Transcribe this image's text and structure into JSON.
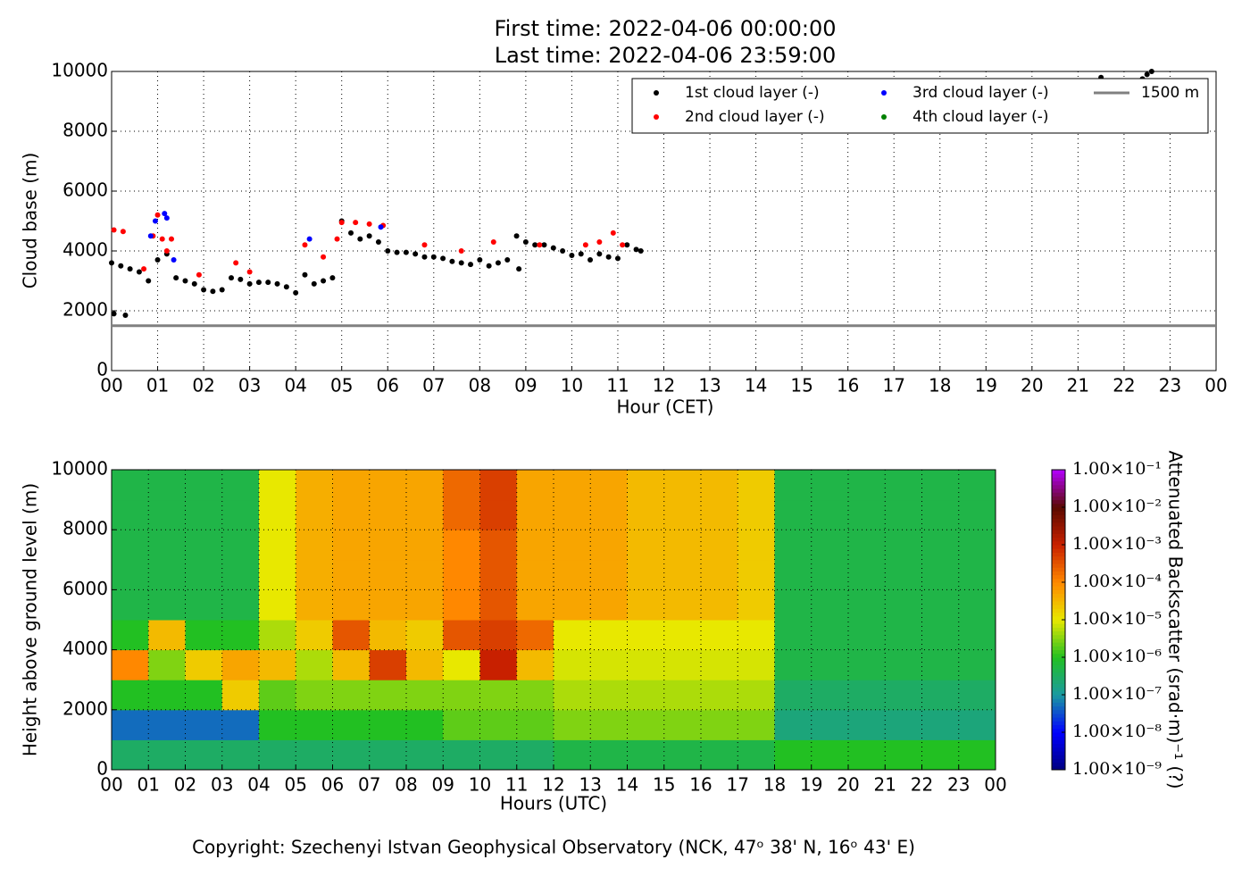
{
  "chart_data": [
    {
      "type": "scatter",
      "title": "First time: 2022-04-06 00:00:00",
      "subtitle": "Last time: 2022-04-06 23:59:00",
      "xlabel": "Hour (CET)",
      "ylabel": "Cloud base (m)",
      "xlim": [
        0,
        24
      ],
      "ylim": [
        0,
        10000
      ],
      "xticks": [
        {
          "value": 0,
          "label": "00"
        },
        {
          "value": 1,
          "label": "01"
        },
        {
          "value": 2,
          "label": "02"
        },
        {
          "value": 3,
          "label": "03"
        },
        {
          "value": 4,
          "label": "04"
        },
        {
          "value": 5,
          "label": "05"
        },
        {
          "value": 6,
          "label": "06"
        },
        {
          "value": 7,
          "label": "07"
        },
        {
          "value": 8,
          "label": "08"
        },
        {
          "value": 9,
          "label": "09"
        },
        {
          "value": 10,
          "label": "10"
        },
        {
          "value": 11,
          "label": "11"
        },
        {
          "value": 12,
          "label": "12"
        },
        {
          "value": 13,
          "label": "13"
        },
        {
          "value": 14,
          "label": "14"
        },
        {
          "value": 15,
          "label": "15"
        },
        {
          "value": 16,
          "label": "16"
        },
        {
          "value": 17,
          "label": "17"
        },
        {
          "value": 18,
          "label": "18"
        },
        {
          "value": 19,
          "label": "19"
        },
        {
          "value": 20,
          "label": "20"
        },
        {
          "value": 21,
          "label": "21"
        },
        {
          "value": 22,
          "label": "22"
        },
        {
          "value": 23,
          "label": "23"
        },
        {
          "value": 24,
          "label": "00"
        }
      ],
      "yticks": [
        0,
        2000,
        4000,
        6000,
        8000,
        10000
      ],
      "grid": true,
      "series": [
        {
          "name": "1st cloud layer (-)",
          "color": "#000000",
          "x": [
            0.0,
            0.05,
            0.2,
            0.3,
            0.4,
            0.6,
            0.8,
            1.0,
            1.2,
            1.4,
            1.6,
            1.8,
            2.0,
            2.2,
            2.4,
            2.6,
            2.8,
            3.0,
            3.2,
            3.4,
            3.6,
            3.8,
            4.0,
            4.2,
            4.4,
            4.6,
            4.8,
            5.0,
            5.2,
            5.4,
            5.6,
            5.8,
            6.0,
            6.2,
            6.4,
            6.6,
            6.8,
            7.0,
            7.2,
            7.4,
            7.6,
            7.8,
            8.0,
            8.2,
            8.4,
            8.6,
            8.8,
            8.85,
            9.0,
            9.2,
            9.4,
            9.6,
            9.8,
            10.0,
            10.2,
            10.4,
            10.6,
            10.8,
            11.0,
            11.2,
            11.4,
            11.5,
            21.5,
            22.4,
            22.5,
            22.6
          ],
          "values": [
            3600,
            1900,
            3500,
            1850,
            3400,
            3300,
            3000,
            3700,
            3900,
            3100,
            3000,
            2900,
            2700,
            2650,
            2700,
            3100,
            3050,
            2900,
            2950,
            2950,
            2900,
            2800,
            2600,
            3200,
            2900,
            3000,
            3100,
            5000,
            4600,
            4400,
            4500,
            4300,
            4000,
            3950,
            3950,
            3900,
            3800,
            3800,
            3750,
            3650,
            3600,
            3550,
            3700,
            3500,
            3600,
            3700,
            4500,
            3400,
            4300,
            4200,
            4200,
            4100,
            4000,
            3850,
            3900,
            3700,
            3900,
            3800,
            3750,
            4200,
            4050,
            4000,
            9800,
            9750,
            9900,
            10000
          ]
        },
        {
          "name": "2nd cloud layer (-)",
          "color": "#ff0000",
          "x": [
            0.05,
            0.25,
            0.7,
            0.9,
            1.0,
            1.1,
            1.2,
            1.3,
            1.9,
            2.7,
            3.0,
            4.2,
            4.6,
            4.9,
            5.0,
            5.3,
            5.6,
            5.9,
            6.8,
            7.6,
            8.3,
            9.3,
            10.3,
            10.6,
            10.9,
            11.1
          ],
          "values": [
            4700,
            4650,
            3400,
            4500,
            5200,
            4400,
            4000,
            4400,
            3200,
            3600,
            3300,
            4200,
            3800,
            4400,
            4950,
            4950,
            4900,
            4850,
            4200,
            4000,
            4300,
            4200,
            4200,
            4300,
            4600,
            4200
          ]
        },
        {
          "name": "3rd cloud layer (-)",
          "color": "#0000ff",
          "x": [
            0.85,
            0.95,
            1.15,
            1.2,
            1.35,
            4.3,
            5.85
          ],
          "values": [
            4500,
            5000,
            5250,
            5100,
            3700,
            4400,
            4800
          ]
        },
        {
          "name": "4th cloud layer (-)",
          "color": "#008000",
          "x": [],
          "values": []
        }
      ],
      "reference_line": {
        "name": "1500 m",
        "value": 1500,
        "color": "#808080"
      }
    },
    {
      "type": "heatmap",
      "xlabel": "Hours (UTC)",
      "ylabel": "Height above ground level (m)",
      "xlim": [
        0,
        24
      ],
      "ylim": [
        0,
        10000
      ],
      "xticks": [
        {
          "value": 0,
          "label": "00"
        },
        {
          "value": 1,
          "label": "01"
        },
        {
          "value": 2,
          "label": "02"
        },
        {
          "value": 3,
          "label": "03"
        },
        {
          "value": 4,
          "label": "04"
        },
        {
          "value": 5,
          "label": "05"
        },
        {
          "value": 6,
          "label": "06"
        },
        {
          "value": 7,
          "label": "07"
        },
        {
          "value": 8,
          "label": "08"
        },
        {
          "value": 9,
          "label": "09"
        },
        {
          "value": 10,
          "label": "10"
        },
        {
          "value": 11,
          "label": "11"
        },
        {
          "value": 12,
          "label": "12"
        },
        {
          "value": 13,
          "label": "13"
        },
        {
          "value": 14,
          "label": "14"
        },
        {
          "value": 15,
          "label": "15"
        },
        {
          "value": 16,
          "label": "16"
        },
        {
          "value": 17,
          "label": "17"
        },
        {
          "value": 18,
          "label": "18"
        },
        {
          "value": 19,
          "label": "19"
        },
        {
          "value": 20,
          "label": "20"
        },
        {
          "value": 21,
          "label": "21"
        },
        {
          "value": 22,
          "label": "22"
        },
        {
          "value": 23,
          "label": "23"
        },
        {
          "value": 24,
          "label": "00"
        }
      ],
      "yticks": [
        0,
        2000,
        4000,
        6000,
        8000,
        10000
      ],
      "grid": true,
      "x": [
        0,
        1,
        2,
        3,
        4,
        5,
        6,
        7,
        8,
        9,
        10,
        11,
        12,
        13,
        14,
        15,
        16,
        17,
        18,
        19,
        20,
        21,
        22,
        23,
        24
      ],
      "y": [
        0,
        1000,
        2000,
        3000,
        4000,
        5000,
        6000,
        7000,
        8000,
        9000,
        10000
      ],
      "z": [
        [
          3e-07,
          3e-07,
          3e-07,
          3e-07,
          3e-07,
          3e-07,
          3e-07,
          3e-07,
          3e-07,
          3e-07,
          3e-07,
          3e-07,
          5e-07,
          5e-07,
          5e-07,
          5e-07,
          5e-07,
          5e-07,
          1e-06,
          1e-06,
          1e-06,
          1e-06,
          1e-06,
          1e-06
        ],
        [
          5e-08,
          5e-08,
          5e-08,
          5e-08,
          1e-06,
          1e-06,
          1e-06,
          1e-06,
          1e-06,
          2e-06,
          2e-06,
          2e-06,
          3e-06,
          3e-06,
          3e-06,
          3e-06,
          3e-06,
          3e-06,
          2e-07,
          2e-07,
          2e-07,
          2e-07,
          2e-07,
          2e-07
        ],
        [
          1e-06,
          1e-06,
          1e-06,
          2e-05,
          2e-06,
          3e-06,
          3e-06,
          3e-06,
          3e-06,
          3e-06,
          3e-06,
          3e-06,
          5e-06,
          5e-06,
          5e-06,
          5e-06,
          5e-06,
          5e-06,
          3e-07,
          3e-07,
          3e-07,
          3e-07,
          3e-07,
          3e-07
        ],
        [
          0.0001,
          3e-06,
          2e-05,
          5e-05,
          3e-05,
          5e-06,
          3e-05,
          0.0005,
          3e-05,
          1e-05,
          0.001,
          3e-05,
          8e-06,
          8e-06,
          8e-06,
          8e-06,
          8e-06,
          8e-06,
          5e-07,
          5e-07,
          5e-07,
          5e-07,
          5e-07,
          5e-07
        ],
        [
          1e-06,
          3e-05,
          1e-06,
          1e-06,
          5e-06,
          2e-05,
          0.0003,
          3e-05,
          2e-05,
          0.0003,
          0.0005,
          0.0002,
          1e-05,
          1e-05,
          1e-05,
          1e-05,
          1e-05,
          1e-05,
          5e-07,
          5e-07,
          5e-07,
          5e-07,
          5e-07,
          5e-07
        ],
        [
          5e-07,
          5e-07,
          5e-07,
          5e-07,
          1e-05,
          4e-05,
          5e-05,
          5e-05,
          5e-05,
          0.0001,
          0.0003,
          5e-05,
          5e-05,
          5e-05,
          3e-05,
          3e-05,
          3e-05,
          2e-05,
          5e-07,
          5e-07,
          5e-07,
          5e-07,
          5e-07,
          5e-07
        ],
        [
          5e-07,
          5e-07,
          5e-07,
          5e-07,
          1e-05,
          4e-05,
          5e-05,
          5e-05,
          5e-05,
          0.0001,
          0.0003,
          5e-05,
          5e-05,
          5e-05,
          3e-05,
          3e-05,
          3e-05,
          2e-05,
          5e-07,
          5e-07,
          5e-07,
          5e-07,
          5e-07,
          5e-07
        ],
        [
          5e-07,
          5e-07,
          5e-07,
          5e-07,
          1e-05,
          4e-05,
          5e-05,
          5e-05,
          5e-05,
          0.0001,
          0.0003,
          5e-05,
          5e-05,
          5e-05,
          3e-05,
          3e-05,
          3e-05,
          2e-05,
          5e-07,
          5e-07,
          5e-07,
          5e-07,
          5e-07,
          5e-07
        ],
        [
          5e-07,
          5e-07,
          5e-07,
          5e-07,
          1e-05,
          4e-05,
          5e-05,
          5e-05,
          5e-05,
          0.0002,
          0.0005,
          5e-05,
          5e-05,
          5e-05,
          3e-05,
          3e-05,
          3e-05,
          2e-05,
          5e-07,
          5e-07,
          5e-07,
          5e-07,
          5e-07,
          5e-07
        ],
        [
          5e-07,
          5e-07,
          5e-07,
          5e-07,
          1e-05,
          4e-05,
          5e-05,
          5e-05,
          5e-05,
          0.0002,
          0.0005,
          5e-05,
          5e-05,
          5e-05,
          3e-05,
          3e-05,
          3e-05,
          2e-05,
          5e-07,
          5e-07,
          5e-07,
          5e-07,
          5e-07,
          5e-07
        ]
      ],
      "colorbar": {
        "label": "Attenuated Backscatter (srad·m)⁻¹ (?)",
        "log": true,
        "lim": [
          1e-09,
          0.1
        ],
        "ticks": [
          {
            "value": 1e-09,
            "label": "1.00×10⁻⁹"
          },
          {
            "value": 1e-08,
            "label": "1.00×10⁻⁸"
          },
          {
            "value": 1e-07,
            "label": "1.00×10⁻⁷"
          },
          {
            "value": 1e-06,
            "label": "1.00×10⁻⁶"
          },
          {
            "value": 1e-05,
            "label": "1.00×10⁻⁵"
          },
          {
            "value": 0.0001,
            "label": "1.00×10⁻⁴"
          },
          {
            "value": 0.001,
            "label": "1.00×10⁻³"
          },
          {
            "value": 0.01,
            "label": "1.00×10⁻²"
          },
          {
            "value": 0.1,
            "label": "1.00×10⁻¹"
          }
        ],
        "colormap": [
          "#00007f",
          "#0000ff",
          "#1a9aa0",
          "#22c022",
          "#e8e800",
          "#ff8800",
          "#c82000",
          "#5a0a00",
          "#b400ff"
        ]
      }
    }
  ],
  "footer": "Copyright: Szechenyi Istvan Geophysical Observatory (NCK, 47ᵒ 38' N, 16ᵒ 43' E)"
}
